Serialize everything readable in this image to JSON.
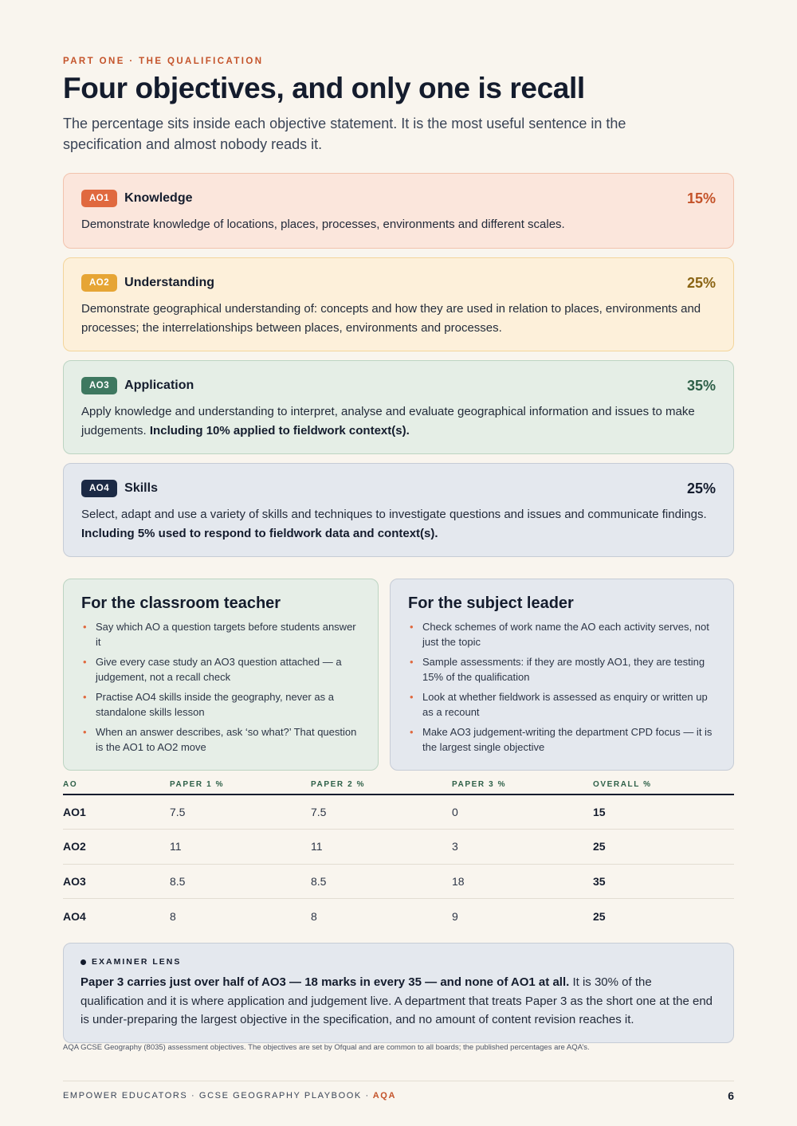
{
  "header": {
    "eyebrow": "PART ONE · THE QUALIFICATION",
    "title": "Four objectives, and only one is recall",
    "subtitle": "The percentage sits inside each objective statement. It is the most useful sentence in the specification and almost nobody reads it."
  },
  "objectives": [
    {
      "code": "AO1",
      "name": "Knowledge",
      "pct": "15%",
      "desc": "Demonstrate knowledge of locations, places, processes, environments and different scales.",
      "emphasis": "",
      "color": "#e0693f"
    },
    {
      "code": "AO2",
      "name": "Understanding",
      "pct": "25%",
      "desc": "Demonstrate geographical understanding of: concepts and how they are used in relation to places, environments and processes; the interrelationships between places, environments and processes.",
      "emphasis": "",
      "color": "#e6a535"
    },
    {
      "code": "AO3",
      "name": "Application",
      "pct": "35%",
      "desc": "Apply knowledge and understanding to interpret, analyse and evaluate geographical information and issues to make judgements.",
      "emphasis": "Including 10% applied to fieldwork context(s).",
      "color": "#3e7860"
    },
    {
      "code": "AO4",
      "name": "Skills",
      "pct": "25%",
      "desc": "Select, adapt and use a variety of skills and techniques to investigate questions and issues and communicate findings.",
      "emphasis": "Including 5% used to respond to fieldwork data and context(s).",
      "color": "#1c2a45"
    }
  ],
  "teacher": {
    "title": "For the classroom teacher",
    "items": [
      "Say which AO a question targets before students answer it",
      "Give every case study an AO3 question attached — a judgement, not a recall check",
      "Practise AO4 skills inside the geography, never as a standalone skills lesson",
      "When an answer describes, ask ‘so what?’ That question is the AO1 to AO2 move"
    ]
  },
  "leader": {
    "title": "For the subject leader",
    "items": [
      "Check schemes of work name the AO each activity serves, not just the topic",
      "Sample assessments: if they are mostly AO1, they are testing 15% of the qualification",
      "Look at whether fieldwork is assessed as enquiry or written up as a recount",
      "Make AO3 judgement-writing the department CPD focus — it is the largest single objective"
    ]
  },
  "table": {
    "headers": [
      "AO",
      "PAPER 1 %",
      "PAPER 2 %",
      "PAPER 3 %",
      "OVERALL %"
    ],
    "rows": [
      [
        "AO1",
        "7.5",
        "7.5",
        "0",
        "15"
      ],
      [
        "AO2",
        "11",
        "11",
        "3",
        "25"
      ],
      [
        "AO3",
        "8.5",
        "8.5",
        "18",
        "35"
      ],
      [
        "AO4",
        "8",
        "8",
        "9",
        "25"
      ]
    ]
  },
  "lens": {
    "label": "EXAMINER LENS",
    "lead": "Paper 3 carries just over half of AO3 — 18 marks in every 35 — and none of AO1 at all.",
    "body": " It is 30% of the qualification and it is where application and judgement live. A department that treats Paper 3 as the short one at the end is under-preparing the largest objective in the specification, and no amount of content revision reaches it."
  },
  "footnote": "AQA GCSE Geography (8035) assessment objectives. The objectives are set by Ofqual and are common to all boards; the published percentages are AQA’s.",
  "footer": {
    "left": "EMPOWER EDUCATORS · GCSE GEOGRAPHY PLAYBOOK ·",
    "board": "AQA",
    "page": "6"
  }
}
